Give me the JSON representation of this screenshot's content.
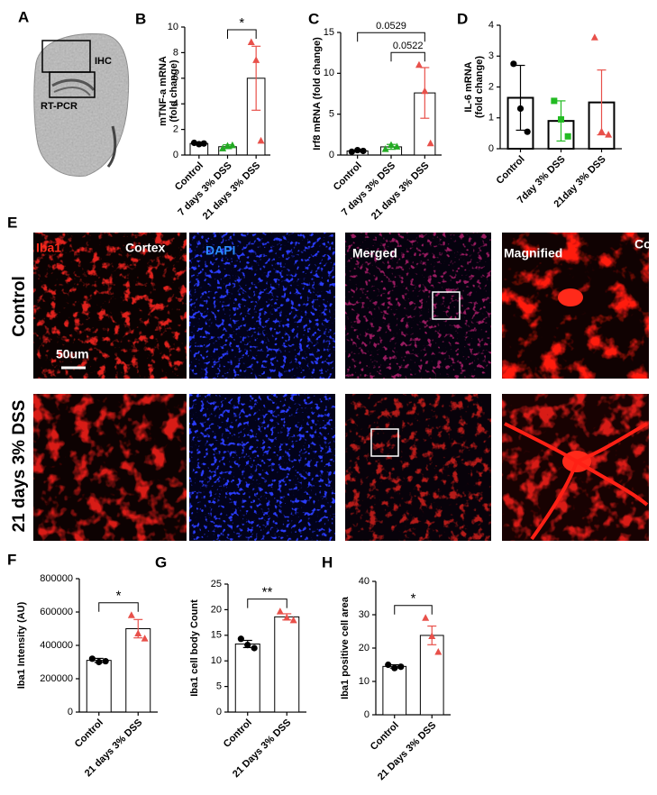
{
  "panel_labels": [
    "A",
    "B",
    "C",
    "D",
    "E",
    "F",
    "G",
    "H"
  ],
  "brain_section": {
    "regions": [
      "IHC",
      "RT-PCR"
    ]
  },
  "staining": {
    "row_labels": [
      "Control",
      "21 days 3% DSS"
    ],
    "column_labels": [
      "Iba1",
      "Cortex",
      "DAPI",
      "Merged",
      "Magnified",
      "Co"
    ],
    "scale_bar": "50um"
  },
  "chart_data": [
    {
      "type": "bar",
      "ylabel": [
        "mTNF-a mRNA",
        "(fold change)"
      ],
      "categories": [
        "Control",
        "7 days 3% DSS",
        "21 days 3% DSS"
      ],
      "values": [
        0.9,
        0.65,
        6.0
      ],
      "errors": [
        0.05,
        0.15,
        2.5
      ],
      "points": [
        [
          0.95,
          0.85,
          0.9
        ],
        [
          0.5,
          0.7,
          0.75
        ],
        [
          8.8,
          7.4,
          1.1
        ]
      ],
      "colors": [
        "#000000",
        "#22aa22",
        "#e8504a"
      ],
      "markers": [
        "circle",
        "triangle",
        "triangle"
      ],
      "ylim": [
        0,
        10
      ],
      "yticks": [
        0,
        2,
        4,
        6,
        8,
        10
      ],
      "annotations": [
        {
          "text": "*",
          "between": [
            1,
            2
          ]
        }
      ]
    },
    {
      "type": "bar",
      "ylabel": "Irf8 mRNA (fold change)",
      "categories": [
        "Control",
        "7 days 3% DSS",
        "21 days 3% DSS"
      ],
      "values": [
        0.5,
        1.0,
        7.6
      ],
      "errors": [
        0.1,
        0.3,
        3.1
      ],
      "points": [
        [
          0.4,
          0.6,
          0.5
        ],
        [
          0.7,
          1.2,
          1.0
        ],
        [
          11.0,
          7.8,
          1.4
        ]
      ],
      "colors": [
        "#000000",
        "#22aa22",
        "#e8504a"
      ],
      "markers": [
        "circle",
        "triangle",
        "triangle"
      ],
      "ylim": [
        0,
        15
      ],
      "yticks": [
        0,
        5,
        10,
        15
      ],
      "annotations": [
        {
          "text": "0.0522",
          "between": [
            1,
            2
          ]
        },
        {
          "text": "0.0529",
          "between": [
            0,
            2
          ]
        }
      ]
    },
    {
      "type": "bar",
      "ylabel": [
        "IL-6 mRNA",
        "(fold change)"
      ],
      "categories": [
        "Control",
        "7day 3% DSS",
        "21day 3% DSS"
      ],
      "values": [
        1.65,
        0.9,
        1.5
      ],
      "errors": [
        1.05,
        0.65,
        1.05
      ],
      "points": [
        [
          2.75,
          1.3,
          0.55
        ],
        [
          1.55,
          0.95,
          0.4
        ],
        [
          3.6,
          0.55,
          0.45
        ]
      ],
      "colors": [
        "#000000",
        "#22bb22",
        "#e8504a"
      ],
      "markers": [
        "circle",
        "square",
        "triangle"
      ],
      "ylim": [
        0,
        4
      ],
      "yticks": [
        0,
        1,
        2,
        3,
        4
      ],
      "annotations": []
    },
    {
      "type": "bar",
      "ylabel": "Iba1 Intensity (AU)",
      "categories": [
        "Control",
        "21 days 3% DSS"
      ],
      "values": [
        310000,
        500000
      ],
      "errors": [
        12000,
        55000
      ],
      "points": [
        [
          320000,
          300000,
          305000
        ],
        [
          580000,
          470000,
          440000
        ]
      ],
      "colors": [
        "#000000",
        "#e8504a"
      ],
      "markers": [
        "circle",
        "triangle"
      ],
      "ylim": [
        0,
        800000
      ],
      "yticks": [
        0,
        200000,
        400000,
        600000,
        800000
      ],
      "annotations": [
        {
          "text": "*",
          "between": [
            0,
            1
          ]
        }
      ]
    },
    {
      "type": "bar",
      "ylabel": "Iba1 cell body Count",
      "categories": [
        "Control",
        "21 Days 3% DSS"
      ],
      "values": [
        13.3,
        18.6
      ],
      "errors": [
        0.7,
        0.6
      ],
      "points": [
        [
          14.3,
          13.1,
          12.5
        ],
        [
          19.6,
          18.4,
          17.9
        ]
      ],
      "colors": [
        "#000000",
        "#e8504a"
      ],
      "markers": [
        "circle",
        "triangle"
      ],
      "ylim": [
        0,
        25
      ],
      "yticks": [
        0,
        5,
        10,
        15,
        20,
        25
      ],
      "annotations": [
        {
          "text": "**",
          "between": [
            0,
            1
          ]
        }
      ]
    },
    {
      "type": "bar",
      "ylabel": "Iba1 positive cell area",
      "categories": [
        "Control",
        "21 Days 3% DSS"
      ],
      "values": [
        14.5,
        23.8
      ],
      "errors": [
        0.5,
        2.8
      ],
      "points": [
        [
          15.0,
          14.0,
          14.4
        ],
        [
          29.0,
          23.5,
          18.8
        ]
      ],
      "colors": [
        "#000000",
        "#e8504a"
      ],
      "markers": [
        "circle",
        "triangle"
      ],
      "ylim": [
        0,
        40
      ],
      "yticks": [
        0,
        10,
        20,
        30,
        40
      ],
      "annotations": [
        {
          "text": "*",
          "between": [
            0,
            1
          ]
        }
      ]
    }
  ]
}
